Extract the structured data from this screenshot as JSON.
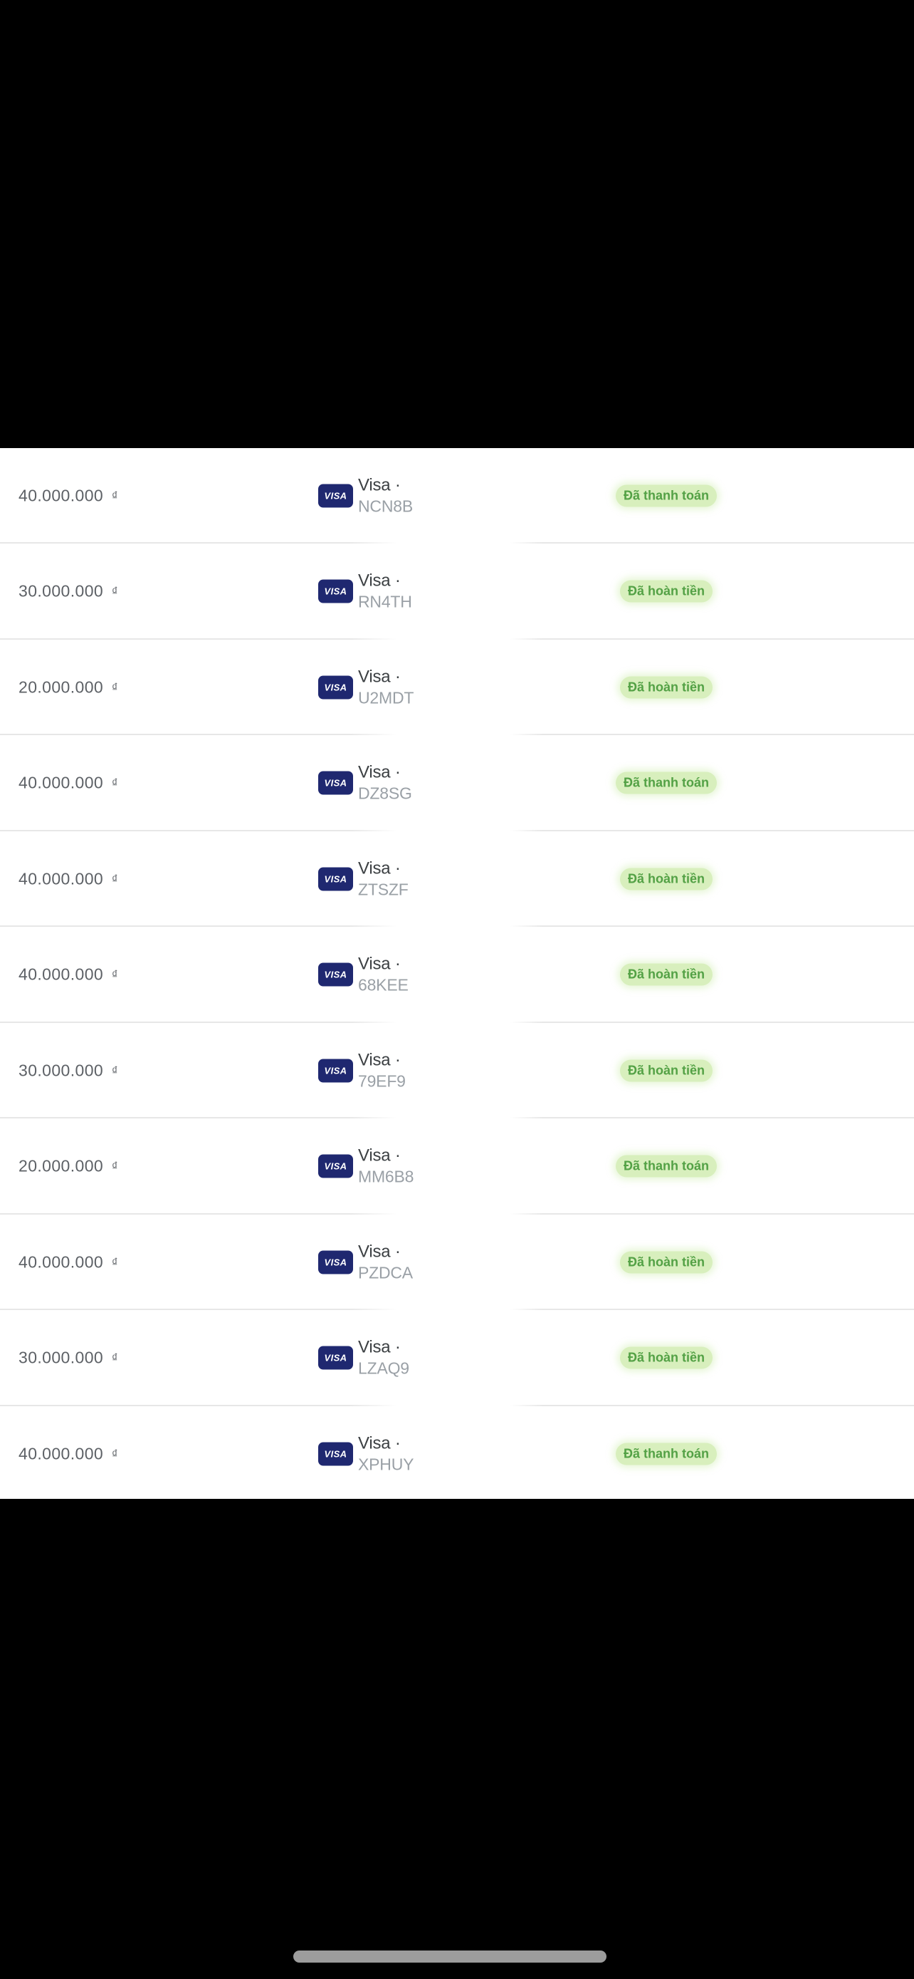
{
  "table": {
    "card_brand": "Visa",
    "brand_separator": "·",
    "currency_symbol": "₫",
    "visa_logo_text": "VISA",
    "status_labels": {
      "paid": "Đã thanh toán",
      "refunded": "Đã hoàn tiền"
    },
    "rows": [
      {
        "amount": "40.000.000",
        "code": "NCN8B",
        "status": "Đã thanh toán"
      },
      {
        "amount": "30.000.000",
        "code": "RN4TH",
        "status": "Đã hoàn tiền"
      },
      {
        "amount": "20.000.000",
        "code": "U2MDT",
        "status": "Đã hoàn tiền"
      },
      {
        "amount": "40.000.000",
        "code": "DZ8SG",
        "status": "Đã thanh toán"
      },
      {
        "amount": "40.000.000",
        "code": "ZTSZF",
        "status": "Đã hoàn tiền"
      },
      {
        "amount": "40.000.000",
        "code": "68KEE",
        "status": "Đã hoàn tiền"
      },
      {
        "amount": "30.000.000",
        "code": "79EF9",
        "status": "Đã hoàn tiền"
      },
      {
        "amount": "20.000.000",
        "code": "MM6B8",
        "status": "Đã thanh toán"
      },
      {
        "amount": "40.000.000",
        "code": "PZDCA",
        "status": "Đã hoàn tiền"
      },
      {
        "amount": "30.000.000",
        "code": "LZAQ9",
        "status": "Đã hoàn tiền"
      },
      {
        "amount": "40.000.000",
        "code": "XPHUY",
        "status": "Đã thanh toán"
      }
    ]
  },
  "colors": {
    "visa_chip_background": "#1f2870",
    "visa_chip_text": "#ffffff",
    "status_badge_background": "#d8efbd",
    "status_badge_text": "#53a145",
    "amount_text": "#5d6166",
    "card_code_text": "#9aa0a6",
    "divider": "#e7e7e7",
    "panel_background": "#ffffff",
    "letterbox_background": "#000000",
    "home_indicator": "#9c9c9c"
  }
}
